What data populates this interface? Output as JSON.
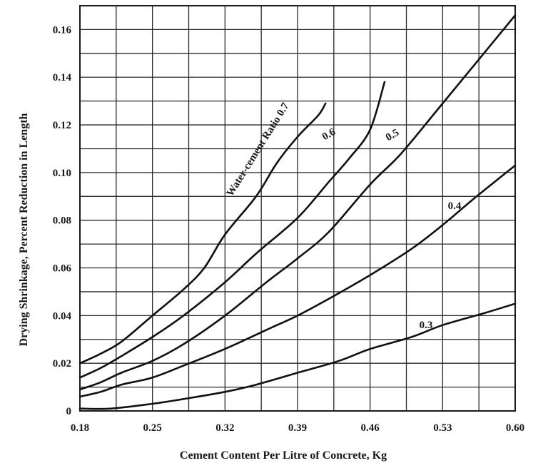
{
  "chart_data": {
    "type": "line",
    "title": "",
    "xlabel": "Cement Content Per Litre of Concrete, Kg",
    "ylabel": "Drying Shrinkage, Percent Reduction in Length",
    "xlim": [
      0.18,
      0.6
    ],
    "ylim": [
      0,
      0.17
    ],
    "x_ticks": [
      "0.18",
      "0.25",
      "0.32",
      "0.39",
      "0.46",
      "0.53",
      "0.60"
    ],
    "y_ticks": [
      "0",
      "0.02",
      "0.04",
      "0.06",
      "0.08",
      "0.10",
      "0.12",
      "0.14",
      "0.16"
    ],
    "grid": true,
    "series": [
      {
        "name": "Water-cement Ratio 0.7",
        "x": [
          0.18,
          0.2,
          0.22,
          0.25,
          0.28,
          0.3,
          0.32,
          0.35,
          0.37,
          0.39,
          0.41,
          0.417
        ],
        "y": [
          0.02,
          0.024,
          0.029,
          0.04,
          0.051,
          0.06,
          0.074,
          0.09,
          0.104,
          0.115,
          0.124,
          0.129
        ]
      },
      {
        "name": "0.6",
        "x": [
          0.18,
          0.2,
          0.22,
          0.25,
          0.28,
          0.32,
          0.35,
          0.39,
          0.42,
          0.44,
          0.46,
          0.474
        ],
        "y": [
          0.014,
          0.018,
          0.023,
          0.031,
          0.04,
          0.054,
          0.066,
          0.081,
          0.096,
          0.106,
          0.118,
          0.138
        ]
      },
      {
        "name": "0.5",
        "x": [
          0.18,
          0.2,
          0.22,
          0.25,
          0.28,
          0.32,
          0.36,
          0.39,
          0.42,
          0.46,
          0.49,
          0.53,
          0.6
        ],
        "y": [
          0.009,
          0.012,
          0.016,
          0.021,
          0.028,
          0.04,
          0.054,
          0.064,
          0.075,
          0.095,
          0.108,
          0.129,
          0.166
        ]
      },
      {
        "name": "0.4",
        "x": [
          0.18,
          0.2,
          0.22,
          0.25,
          0.28,
          0.32,
          0.36,
          0.39,
          0.42,
          0.46,
          0.5,
          0.53,
          0.56,
          0.6
        ],
        "y": [
          0.006,
          0.008,
          0.011,
          0.014,
          0.019,
          0.026,
          0.034,
          0.04,
          0.047,
          0.057,
          0.068,
          0.078,
          0.089,
          0.103
        ]
      },
      {
        "name": "0.3",
        "x": [
          0.18,
          0.21,
          0.25,
          0.28,
          0.32,
          0.35,
          0.39,
          0.43,
          0.46,
          0.5,
          0.53,
          0.57,
          0.6
        ],
        "y": [
          0.001,
          0.001,
          0.003,
          0.005,
          0.008,
          0.011,
          0.016,
          0.021,
          0.026,
          0.031,
          0.036,
          0.041,
          0.045
        ]
      }
    ]
  }
}
